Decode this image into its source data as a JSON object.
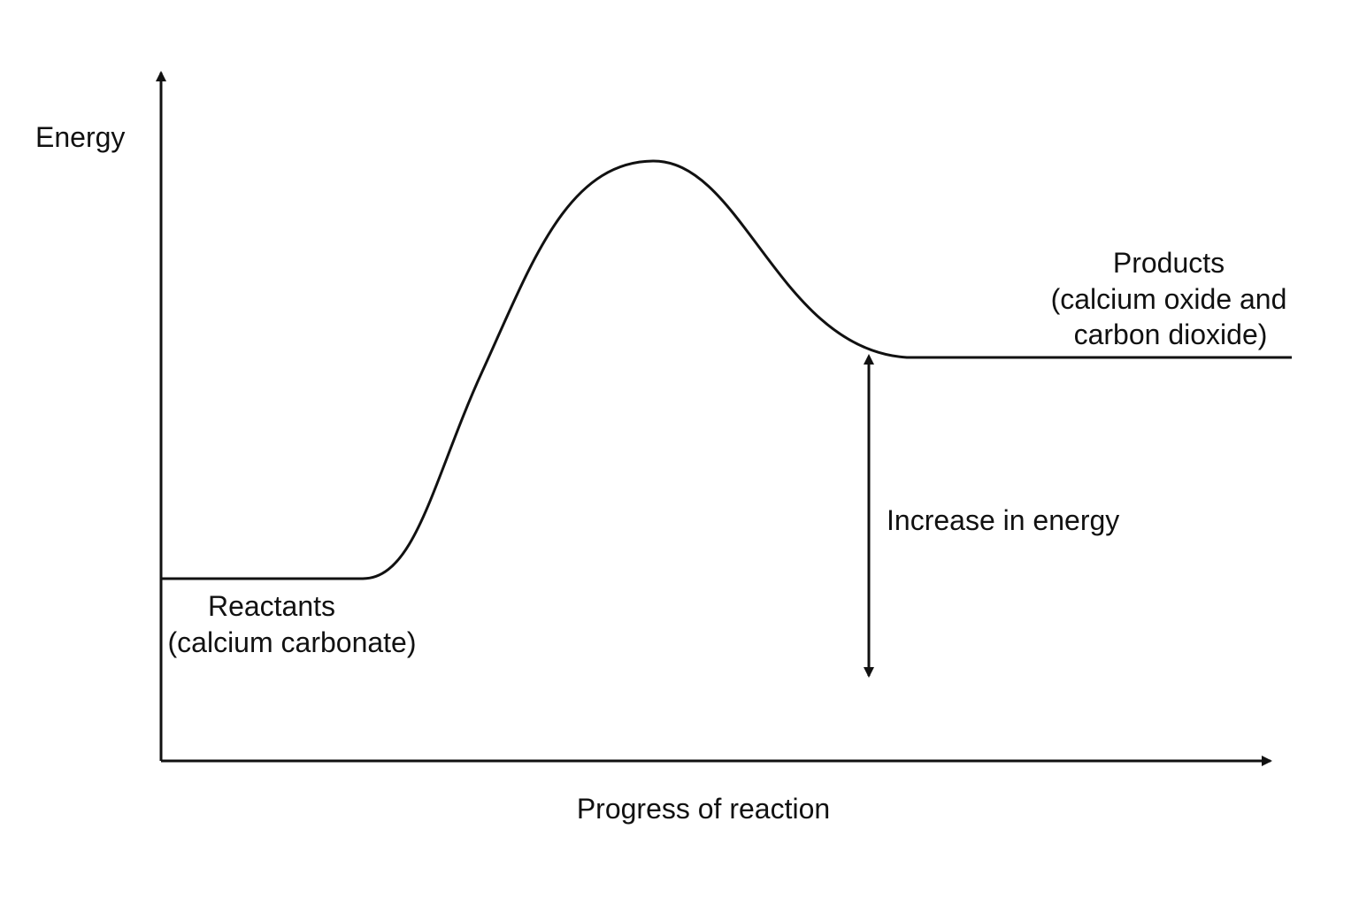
{
  "diagram": {
    "y_axis_label": "Energy",
    "x_axis_label": "Progress of reaction",
    "reactants": {
      "line1": "Reactants",
      "line2": "(calcium carbonate)"
    },
    "products": {
      "line1": "Products",
      "line2": "(calcium oxide and",
      "line3": "carbon dioxide)"
    },
    "energy_change_label": "Increase in energy"
  }
}
